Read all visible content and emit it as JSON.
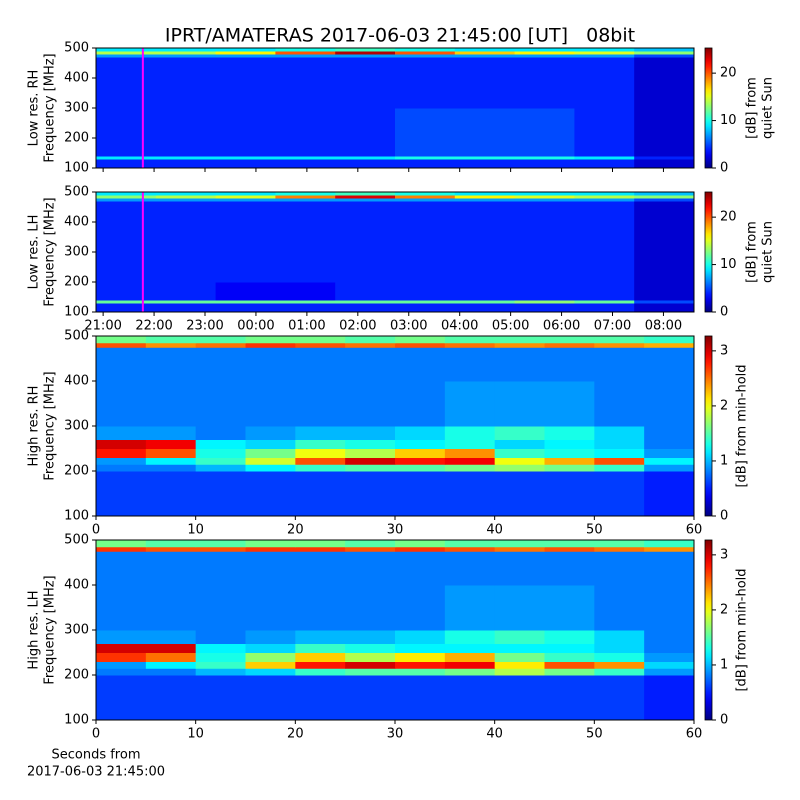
{
  "title": "IPRT/AMATERAS 2017-06-03 21:45:00 [UT]   08bit",
  "chart_data": [
    {
      "type": "heatmap",
      "colormap": "jet",
      "ylabel": [
        "Low res. RH",
        "Frequency [MHz]"
      ],
      "colorbar_label": [
        "[dB] from",
        "quiet Sun"
      ],
      "xlim": [
        -0.14,
        11.6
      ],
      "xticks": [
        {
          "value": 0,
          "label": "21:00"
        },
        {
          "value": 1,
          "label": "22:00"
        },
        {
          "value": 2,
          "label": "23:00"
        },
        {
          "value": 3,
          "label": "00:00"
        },
        {
          "value": 4,
          "label": "01:00"
        },
        {
          "value": 5,
          "label": "02:00"
        },
        {
          "value": 6,
          "label": "03:00"
        },
        {
          "value": 7,
          "label": "04:00"
        },
        {
          "value": 8,
          "label": "05:00"
        },
        {
          "value": 9,
          "label": "06:00"
        },
        {
          "value": 10,
          "label": "07:00"
        },
        {
          "value": 11,
          "label": "08:00"
        }
      ],
      "ylim": [
        100,
        500
      ],
      "yticks": [
        100,
        200,
        300,
        400,
        500
      ],
      "clim": [
        0,
        25.3
      ],
      "cticks": [
        0,
        10,
        20
      ],
      "marker_x": 0.78,
      "marker_color": "#ff00ff",
      "y_bins": [
        100,
        130,
        140,
        200,
        300,
        400,
        470,
        480,
        490,
        500
      ],
      "z": [
        [
          4,
          4,
          4,
          4,
          4,
          4,
          4,
          4,
          4,
          2
        ],
        [
          9,
          9,
          9,
          9,
          9,
          10,
          10,
          10,
          9,
          4
        ],
        [
          4,
          4,
          4,
          4,
          4,
          5,
          5,
          5,
          4,
          2
        ],
        [
          4,
          4,
          4,
          4,
          4,
          5,
          5,
          5,
          4,
          2
        ],
        [
          4,
          4,
          4,
          4,
          4,
          4,
          4,
          4,
          4,
          2
        ],
        [
          4,
          4,
          4,
          4,
          4,
          4,
          4,
          4,
          4,
          2
        ],
        [
          7,
          7,
          7,
          7,
          7,
          7,
          7,
          7,
          7,
          5
        ],
        [
          14,
          14,
          16,
          20,
          24,
          20,
          17,
          16,
          15,
          13
        ],
        [
          9,
          9,
          9,
          10,
          11,
          10,
          9,
          9,
          9,
          8
        ]
      ]
    },
    {
      "type": "heatmap",
      "colormap": "jet",
      "ylabel": [
        "Low res. LH",
        "Frequency [MHz]"
      ],
      "colorbar_label": [
        "[dB] from",
        "quiet Sun"
      ],
      "xlim": [
        -0.14,
        11.6
      ],
      "xticks": [
        {
          "value": 0,
          "label": "21:00"
        },
        {
          "value": 1,
          "label": "22:00"
        },
        {
          "value": 2,
          "label": "23:00"
        },
        {
          "value": 3,
          "label": "00:00"
        },
        {
          "value": 4,
          "label": "01:00"
        },
        {
          "value": 5,
          "label": "02:00"
        },
        {
          "value": 6,
          "label": "03:00"
        },
        {
          "value": 7,
          "label": "04:00"
        },
        {
          "value": 8,
          "label": "05:00"
        },
        {
          "value": 9,
          "label": "06:00"
        },
        {
          "value": 10,
          "label": "07:00"
        },
        {
          "value": 11,
          "label": "08:00"
        }
      ],
      "ylim": [
        100,
        500
      ],
      "yticks": [
        100,
        200,
        300,
        400,
        500
      ],
      "clim": [
        0,
        25.3
      ],
      "cticks": [
        0,
        10,
        20
      ],
      "marker_x": 0.78,
      "marker_color": "#ff00ff",
      "y_bins": [
        100,
        130,
        140,
        200,
        300,
        400,
        470,
        480,
        490,
        500
      ],
      "z": [
        [
          4,
          4,
          4,
          4,
          4,
          4,
          4,
          4,
          4,
          2
        ],
        [
          12,
          12,
          12,
          12,
          12,
          12,
          12,
          13,
          12,
          5
        ],
        [
          4,
          4,
          3,
          3,
          4,
          4,
          4,
          4,
          4,
          2
        ],
        [
          4,
          4,
          4,
          4,
          4,
          4,
          4,
          4,
          4,
          2
        ],
        [
          4,
          4,
          4,
          4,
          4,
          4,
          4,
          4,
          4,
          2
        ],
        [
          4,
          4,
          4,
          4,
          4,
          4,
          4,
          4,
          4,
          2
        ],
        [
          7,
          7,
          7,
          7,
          7,
          7,
          7,
          7,
          7,
          5
        ],
        [
          13,
          14,
          15,
          19,
          23,
          19,
          16,
          15,
          14,
          13
        ],
        [
          9,
          9,
          9,
          10,
          11,
          10,
          9,
          9,
          9,
          8
        ]
      ]
    },
    {
      "type": "heatmap",
      "colormap": "jet",
      "ylabel": [
        "High res. RH",
        "Frequency [MHz]"
      ],
      "colorbar_label": [
        "[dB] from min-hold"
      ],
      "xlim": [
        0,
        60
      ],
      "xticks": [
        0,
        10,
        20,
        30,
        40,
        50,
        60
      ],
      "ylim": [
        100,
        500
      ],
      "yticks": [
        100,
        200,
        300,
        400,
        500
      ],
      "clim": [
        0,
        3.27
      ],
      "cticks": [
        0,
        1,
        2,
        3
      ],
      "y_bins": [
        100,
        200,
        215,
        230,
        250,
        270,
        300,
        400,
        475,
        485,
        500
      ],
      "z": [
        [
          0.6,
          0.6,
          0.6,
          0.6,
          0.6,
          0.6,
          0.6,
          0.6,
          0.6,
          0.6,
          0.6,
          0.5
        ],
        [
          0.8,
          0.8,
          1.0,
          1.2,
          1.4,
          1.5,
          1.5,
          1.6,
          1.7,
          1.6,
          1.4,
          0.9
        ],
        [
          0.9,
          1.2,
          1.4,
          1.9,
          2.6,
          3.0,
          2.8,
          2.9,
          2.0,
          2.3,
          2.6,
          1.2
        ],
        [
          2.8,
          2.6,
          1.3,
          1.6,
          2.0,
          1.8,
          2.2,
          2.4,
          1.4,
          1.3,
          1.2,
          0.9
        ],
        [
          3.0,
          2.9,
          1.2,
          1.1,
          1.4,
          1.3,
          1.2,
          1.3,
          1.1,
          1.2,
          1.1,
          0.8
        ],
        [
          0.9,
          0.9,
          0.8,
          0.9,
          1.0,
          1.0,
          1.1,
          1.3,
          1.4,
          1.3,
          1.1,
          0.8
        ],
        [
          0.8,
          0.8,
          0.8,
          0.8,
          0.8,
          0.8,
          0.8,
          0.9,
          0.9,
          0.9,
          0.8,
          0.8
        ],
        [
          0.8,
          0.8,
          0.8,
          0.8,
          0.8,
          0.8,
          0.8,
          0.8,
          0.8,
          0.8,
          0.8,
          0.8
        ],
        [
          2.6,
          2.4,
          2.5,
          2.7,
          2.6,
          2.5,
          2.6,
          2.5,
          2.4,
          2.5,
          2.4,
          2.3
        ],
        [
          1.6,
          1.5,
          1.5,
          1.6,
          1.6,
          1.5,
          1.6,
          1.5,
          1.5,
          1.5,
          1.5,
          1.4
        ]
      ]
    },
    {
      "type": "heatmap",
      "colormap": "jet",
      "ylabel": [
        "High res. LH",
        "Frequency [MHz]"
      ],
      "colorbar_label": [
        "[dB] from min-hold"
      ],
      "xlabel": [
        "Seconds from",
        "2017-06-03 21:45:00"
      ],
      "xlim": [
        0,
        60
      ],
      "xticks": [
        0,
        10,
        20,
        30,
        40,
        50,
        60
      ],
      "ylim": [
        100,
        500
      ],
      "yticks": [
        100,
        200,
        300,
        400,
        500
      ],
      "clim": [
        0,
        3.27
      ],
      "cticks": [
        0,
        1,
        2,
        3
      ],
      "y_bins": [
        100,
        200,
        215,
        230,
        250,
        270,
        300,
        400,
        475,
        485,
        500
      ],
      "z": [
        [
          0.6,
          0.6,
          0.6,
          0.6,
          0.6,
          0.6,
          0.6,
          0.6,
          0.6,
          0.6,
          0.6,
          0.5
        ],
        [
          0.8,
          0.8,
          1.0,
          1.1,
          1.4,
          1.5,
          1.5,
          1.6,
          1.8,
          1.6,
          1.4,
          0.9
        ],
        [
          0.9,
          1.2,
          1.4,
          2.2,
          2.8,
          3.0,
          2.8,
          2.9,
          2.1,
          2.6,
          2.4,
          1.1
        ],
        [
          2.7,
          2.5,
          1.3,
          1.7,
          2.2,
          1.8,
          2.1,
          2.3,
          1.6,
          1.4,
          1.3,
          0.9
        ],
        [
          3.0,
          3.0,
          1.2,
          1.1,
          1.4,
          1.3,
          1.2,
          1.2,
          1.2,
          1.2,
          1.1,
          0.8
        ],
        [
          0.9,
          0.9,
          0.8,
          0.9,
          1.0,
          1.0,
          1.1,
          1.3,
          1.4,
          1.3,
          1.1,
          0.8
        ],
        [
          0.8,
          0.8,
          0.8,
          0.8,
          0.8,
          0.8,
          0.8,
          0.9,
          0.9,
          0.9,
          0.8,
          0.8
        ],
        [
          0.8,
          0.8,
          0.8,
          0.8,
          0.8,
          0.8,
          0.8,
          0.8,
          0.8,
          0.8,
          0.8,
          0.8
        ],
        [
          2.7,
          2.6,
          2.6,
          2.7,
          2.7,
          2.6,
          2.7,
          2.6,
          2.5,
          2.6,
          2.5,
          2.4
        ],
        [
          1.6,
          1.5,
          1.5,
          1.6,
          1.6,
          1.5,
          1.6,
          1.5,
          1.5,
          1.5,
          1.5,
          1.4
        ]
      ]
    }
  ]
}
